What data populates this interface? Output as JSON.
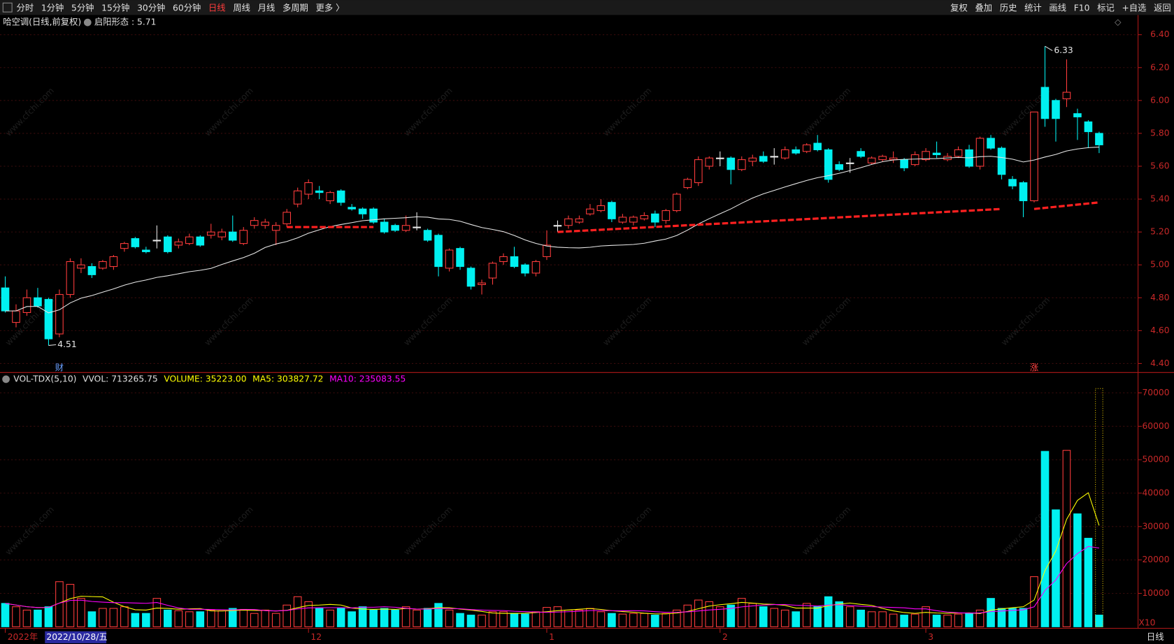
{
  "toolbar": {
    "left": [
      {
        "label": "分时"
      },
      {
        "label": "1分钟"
      },
      {
        "label": "5分钟"
      },
      {
        "label": "15分钟"
      },
      {
        "label": "30分钟"
      },
      {
        "label": "60分钟"
      },
      {
        "label": "日线",
        "active": true
      },
      {
        "label": "周线"
      },
      {
        "label": "月线"
      },
      {
        "label": "多周期"
      },
      {
        "label": "更多 〉"
      }
    ],
    "right": [
      "复权",
      "叠加",
      "历史",
      "统计",
      "画线",
      "F10",
      "标记",
      "+自选",
      "返回"
    ]
  },
  "title": "哈空调(日线,前复权)",
  "indicator": "启阳形态 : 5.71",
  "watermark": "www.cfchi.com",
  "footer": "日线",
  "chart_data": [
    {
      "type": "candlestick",
      "up_color": "#ff3c3c",
      "down_color": "#00f0f0",
      "ma_color": "#e8e8e8",
      "open": [
        4.86,
        4.65,
        4.71,
        4.8,
        4.79,
        4.58,
        4.82,
        4.98,
        4.99,
        4.98,
        4.99,
        5.1,
        5.16,
        5.09,
        5.15,
        5.17,
        5.12,
        5.13,
        5.17,
        5.18,
        5.17,
        5.2,
        5.13,
        5.24,
        5.24,
        5.21,
        5.25,
        5.37,
        5.43,
        5.45,
        5.39,
        5.45,
        5.35,
        5.34,
        5.34,
        5.26,
        5.24,
        5.21,
        5.23,
        5.21,
        5.18,
        4.98,
        5.1,
        4.98,
        4.88,
        4.92,
        5.02,
        5.05,
        5.0,
        4.95,
        5.05,
        5.24,
        5.24,
        5.26,
        5.31,
        5.33,
        5.38,
        5.26,
        5.26,
        5.28,
        5.31,
        5.27,
        5.33,
        5.47,
        5.5,
        5.6,
        5.65,
        5.65,
        5.58,
        5.63,
        5.66,
        5.66,
        5.65,
        5.7,
        5.69,
        5.74,
        5.7,
        5.61,
        5.62,
        5.69,
        5.62,
        5.64,
        5.64,
        5.64,
        5.61,
        5.64,
        5.68,
        5.64,
        5.66,
        5.7,
        5.6,
        5.77,
        5.71,
        5.52,
        5.5,
        5.39,
        6.08,
        6.0,
        6.01,
        5.92,
        5.87,
        5.8
      ],
      "high": [
        4.93,
        4.76,
        4.85,
        4.86,
        4.8,
        4.85,
        5.04,
        5.04,
        5.01,
        5.03,
        5.06,
        5.14,
        5.17,
        5.11,
        5.24,
        5.18,
        5.16,
        5.19,
        5.18,
        5.25,
        5.22,
        5.3,
        5.23,
        5.29,
        5.28,
        5.26,
        5.34,
        5.47,
        5.52,
        5.48,
        5.45,
        5.46,
        5.37,
        5.35,
        5.35,
        5.28,
        5.25,
        5.3,
        5.32,
        5.22,
        5.19,
        5.1,
        5.11,
        4.99,
        4.91,
        5.02,
        5.07,
        5.11,
        5.01,
        5.03,
        5.21,
        5.27,
        5.3,
        5.3,
        5.37,
        5.4,
        5.39,
        5.31,
        5.3,
        5.32,
        5.33,
        5.34,
        5.44,
        5.53,
        5.66,
        5.66,
        5.69,
        5.66,
        5.66,
        5.67,
        5.69,
        5.71,
        5.72,
        5.72,
        5.74,
        5.79,
        5.71,
        5.63,
        5.65,
        5.71,
        5.66,
        5.67,
        5.69,
        5.65,
        5.69,
        5.71,
        5.75,
        5.68,
        5.72,
        5.73,
        5.78,
        5.79,
        5.72,
        5.54,
        5.51,
        5.93,
        6.33,
        6.01,
        6.25,
        5.95,
        5.88,
        5.81
      ],
      "low": [
        4.71,
        4.62,
        4.69,
        4.74,
        4.51,
        4.56,
        4.8,
        4.95,
        4.92,
        4.97,
        4.97,
        5.08,
        5.1,
        5.07,
        5.1,
        5.07,
        5.1,
        5.12,
        5.11,
        5.16,
        5.15,
        5.14,
        5.12,
        5.22,
        5.22,
        5.12,
        5.23,
        5.35,
        5.4,
        5.4,
        5.37,
        5.36,
        5.33,
        5.28,
        5.25,
        5.19,
        5.2,
        5.2,
        5.21,
        5.14,
        4.93,
        4.96,
        4.97,
        4.85,
        4.82,
        4.88,
        5.0,
        4.98,
        4.93,
        4.93,
        5.03,
        5.2,
        5.22,
        5.25,
        5.3,
        5.32,
        5.26,
        5.25,
        5.24,
        5.27,
        5.23,
        5.25,
        5.32,
        5.46,
        5.48,
        5.58,
        5.6,
        5.49,
        5.57,
        5.6,
        5.62,
        5.61,
        5.64,
        5.67,
        5.68,
        5.69,
        5.5,
        5.57,
        5.56,
        5.65,
        5.61,
        5.63,
        5.62,
        5.57,
        5.6,
        5.63,
        5.65,
        5.63,
        5.65,
        5.59,
        5.58,
        5.7,
        5.52,
        5.46,
        5.29,
        5.38,
        5.84,
        5.75,
        5.96,
        5.76,
        5.71,
        5.68
      ],
      "close": [
        4.72,
        4.72,
        4.8,
        4.75,
        4.55,
        4.82,
        5.02,
        5.0,
        4.94,
        5.02,
        5.05,
        5.13,
        5.11,
        5.08,
        5.15,
        5.08,
        5.14,
        5.17,
        5.12,
        5.2,
        5.2,
        5.15,
        5.21,
        5.27,
        5.26,
        5.24,
        5.32,
        5.45,
        5.5,
        5.44,
        5.44,
        5.38,
        5.34,
        5.31,
        5.26,
        5.2,
        5.21,
        5.24,
        5.23,
        5.15,
        4.99,
        5.09,
        4.99,
        4.87,
        4.89,
        5.01,
        5.05,
        4.99,
        4.95,
        5.02,
        5.12,
        5.24,
        5.28,
        5.28,
        5.34,
        5.36,
        5.28,
        5.29,
        5.29,
        5.3,
        5.26,
        5.33,
        5.43,
        5.52,
        5.64,
        5.65,
        5.65,
        5.58,
        5.64,
        5.65,
        5.63,
        5.66,
        5.7,
        5.68,
        5.73,
        5.7,
        5.52,
        5.58,
        5.62,
        5.66,
        5.65,
        5.66,
        5.65,
        5.59,
        5.67,
        5.69,
        5.67,
        5.66,
        5.7,
        5.6,
        5.77,
        5.71,
        5.55,
        5.48,
        5.39,
        5.93,
        5.89,
        5.89,
        6.05,
        5.9,
        5.81,
        5.73
      ],
      "ylim": [
        4.35,
        6.52
      ],
      "yticks": [
        {
          "value": 4.4,
          "label": "4.40"
        },
        {
          "value": 4.6,
          "label": "4.60"
        },
        {
          "value": 4.8,
          "label": "4.80"
        },
        {
          "value": 5.0,
          "label": "5.00"
        },
        {
          "value": 5.2,
          "label": "5.20"
        },
        {
          "value": 5.4,
          "label": "5.40"
        },
        {
          "value": 5.6,
          "label": "5.60"
        },
        {
          "value": 5.8,
          "label": "5.80"
        },
        {
          "value": 6.0,
          "label": "6.00"
        },
        {
          "value": 6.2,
          "label": "6.20"
        },
        {
          "value": 6.4,
          "label": "6.40"
        }
      ],
      "annotations": [
        {
          "index": 96,
          "value": 6.33
        },
        {
          "index": 4,
          "value": 4.51
        }
      ],
      "markers": [
        {
          "index": 5,
          "label": "财"
        },
        {
          "index": 95,
          "label": "涨"
        }
      ],
      "support_lines": [
        {
          "from": 26,
          "to": 34,
          "values": [
            5.23,
            5.23
          ]
        },
        {
          "from": 51,
          "to": 92,
          "values": [
            5.2,
            5.34
          ]
        },
        {
          "from": 95,
          "to": 101,
          "values": [
            5.34,
            5.38
          ]
        }
      ],
      "x_labels": [
        {
          "index": 0,
          "label": "2022年"
        },
        {
          "index": 28,
          "label": "12"
        },
        {
          "index": 50,
          "label": "1"
        },
        {
          "index": 66,
          "label": "2"
        },
        {
          "index": 85,
          "label": "3"
        }
      ],
      "cursor_label": "2022/10/28/五"
    },
    {
      "type": "bar",
      "header": [
        {
          "text": "VOL-TDX(5,10)",
          "color": "#e0e0e0"
        },
        {
          "text": "VVOL: 713265.75",
          "color": "#e0e0e0"
        },
        {
          "text": "VOLUME: 35223.00",
          "color": "#ffff00"
        },
        {
          "text": "MA5: 303827.72",
          "color": "#ffff00"
        },
        {
          "text": "MA10: 235083.55",
          "color": "#ff00ff"
        }
      ],
      "values": [
        7000,
        6000,
        5000,
        5000,
        6000,
        13500,
        12700,
        8500,
        4500,
        5500,
        5500,
        6000,
        4000,
        4000,
        8500,
        5000,
        4800,
        4500,
        4500,
        5000,
        4800,
        5500,
        5200,
        4000,
        5000,
        4000,
        6500,
        9000,
        7500,
        5500,
        5000,
        5500,
        4500,
        6000,
        5000,
        5500,
        5000,
        6000,
        5000,
        5500,
        7000,
        5000,
        4000,
        3500,
        3500,
        4500,
        4500,
        4000,
        3800,
        4500,
        5800,
        6000,
        5000,
        5000,
        5500,
        4500,
        4000,
        3800,
        4000,
        4000,
        3500,
        4000,
        5000,
        6500,
        8000,
        7500,
        6000,
        6500,
        8500,
        7000,
        6000,
        5500,
        5000,
        4500,
        7000,
        6000,
        9000,
        7500,
        6000,
        5000,
        4500,
        4500,
        3800,
        3500,
        3800,
        6000,
        3500,
        3500,
        3800,
        4000,
        5000,
        8500,
        5500,
        5500,
        5500,
        15000,
        52500,
        35000,
        52800,
        33800,
        26500,
        3500
      ],
      "vvol": 71300,
      "ylim": [
        0,
        72300
      ],
      "yticks": [
        10000,
        20000,
        30000,
        40000,
        50000,
        60000,
        70000
      ],
      "ma": [
        {
          "period": 5,
          "color": "#ffff00"
        },
        {
          "period": 10,
          "color": "#ff00ff"
        }
      ],
      "unit_label": "X10"
    }
  ]
}
